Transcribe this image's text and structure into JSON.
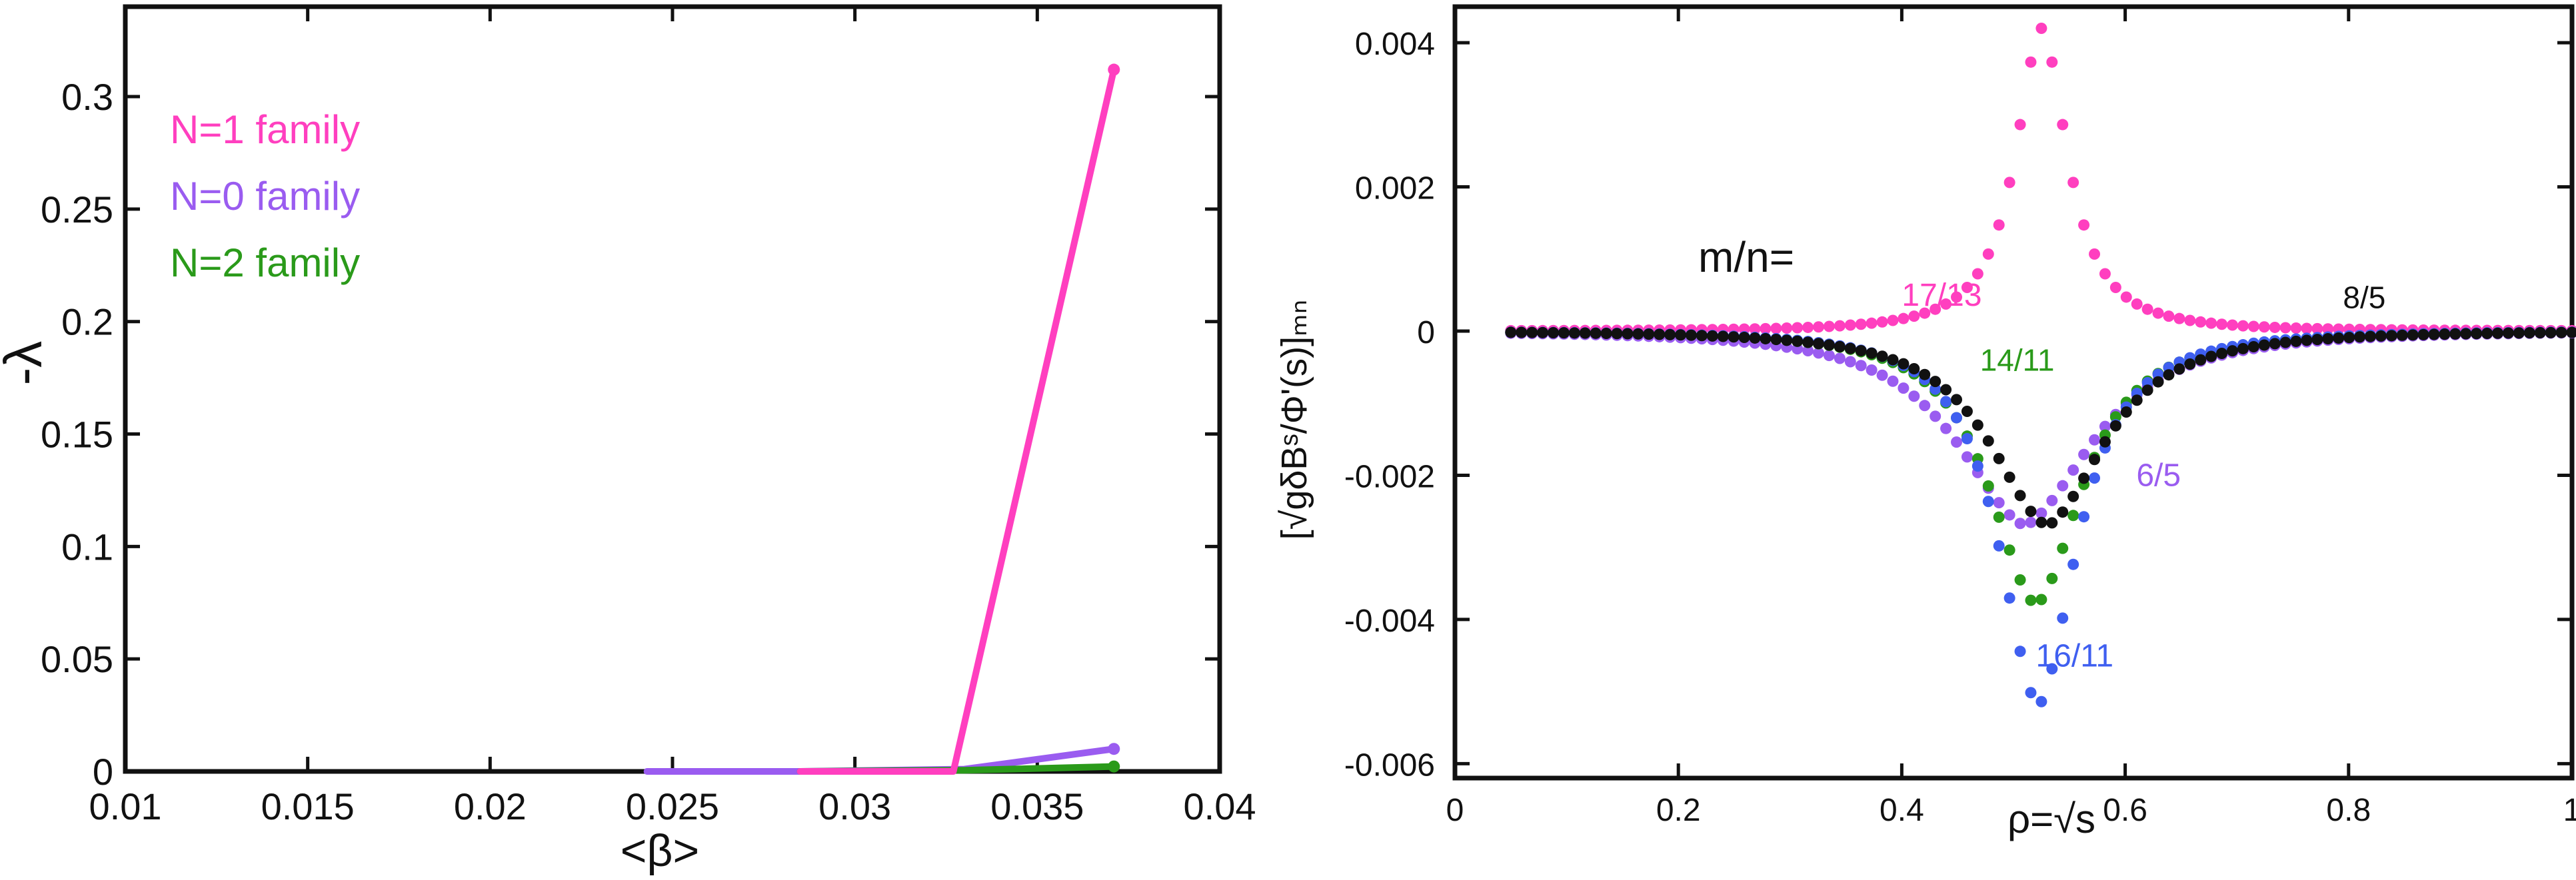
{
  "colors": {
    "n1": "#ff3fbf",
    "n0": "#9a5cf0",
    "n2": "#2a9a1a",
    "blue": "#3f5ff0",
    "black": "#111111",
    "magenta": "#ff3fbf",
    "purple": "#9a5cf0",
    "green": "#2a9a1a"
  },
  "chart_data": [
    {
      "type": "line",
      "xlabel": "<β>",
      "ylabel": "-λ",
      "xlim": [
        0.01,
        0.04
      ],
      "ylim": [
        0,
        0.34
      ],
      "xticks": [
        "0.01",
        "0.015",
        "0.02",
        "0.025",
        "0.03",
        "0.035",
        "0.04"
      ],
      "yticks": [
        "0",
        "0.05",
        "0.1",
        "0.15",
        "0.2",
        "0.25",
        "0.3"
      ],
      "grid": false,
      "legend": "top-left",
      "series": [
        {
          "name": "N=1 family",
          "color": "n1",
          "x": [
            0.0285,
            0.0327,
            0.0371
          ],
          "y": [
            0,
            0,
            0.312
          ]
        },
        {
          "name": "N=0 family",
          "color": "n0",
          "x": [
            0.0243,
            0.0285,
            0.033,
            0.0371
          ],
          "y": [
            0,
            0,
            0.001,
            0.01
          ]
        },
        {
          "name": "N=2 family",
          "color": "n2",
          "x": [
            0.0285,
            0.033,
            0.0371
          ],
          "y": [
            0,
            0.0005,
            0.0022
          ]
        }
      ]
    },
    {
      "type": "scatter",
      "xlabel": "ρ=√s",
      "ylabel": "[√gδBˢ/Φ'(s)]ₘₙ",
      "xlim": [
        0,
        1
      ],
      "ylim": [
        -0.0062,
        0.0045
      ],
      "xticks": [
        "0",
        "0.2",
        "0.4",
        "0.6",
        "0.8",
        "1"
      ],
      "yticks": [
        "0.004",
        "0.002",
        "0",
        "-0.002",
        "-0.004",
        "-0.006"
      ],
      "grid": false,
      "legend_label": "m/n=",
      "series": [
        {
          "name": "17/13",
          "color": "magenta",
          "center": 0.525,
          "amplitude": 0.0042,
          "width": 0.03
        },
        {
          "name": "16/11",
          "color": "blue",
          "center": 0.522,
          "amplitude": -0.0052,
          "width": 0.045
        },
        {
          "name": "14/11",
          "color": "green",
          "center": 0.52,
          "amplitude": -0.0038,
          "width": 0.055
        },
        {
          "name": "6/5",
          "color": "purple",
          "center": 0.51,
          "amplitude": -0.0027,
          "width": 0.085
        },
        {
          "name": "8/5",
          "color": "black",
          "center": 0.53,
          "amplitude": -0.0027,
          "width": 0.07
        }
      ],
      "labels": [
        {
          "text": "17/13",
          "color": "magenta"
        },
        {
          "text": "16/11",
          "color": "blue"
        },
        {
          "text": "14/11",
          "color": "green"
        },
        {
          "text": "6/5",
          "color": "purple"
        },
        {
          "text": "8/5",
          "color": "black"
        }
      ]
    }
  ]
}
